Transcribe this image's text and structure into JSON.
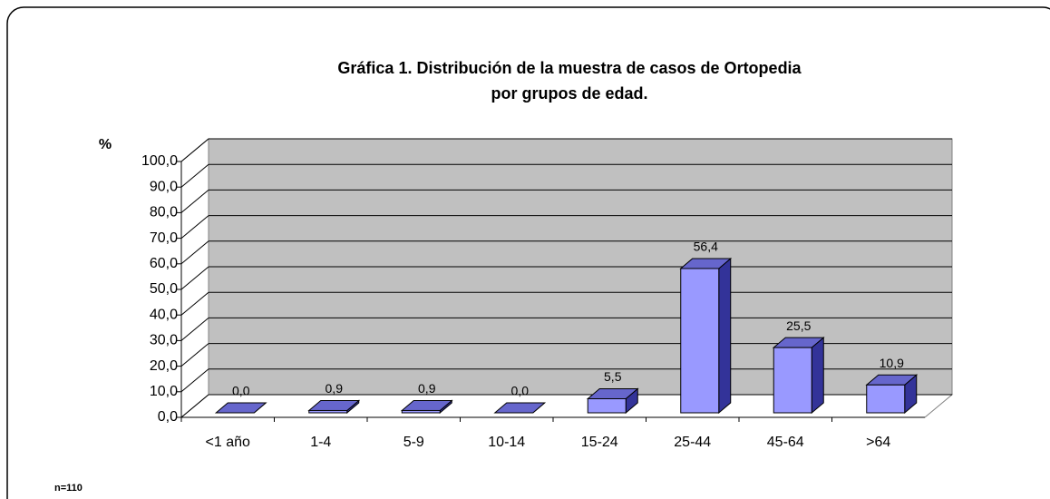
{
  "chart_data": {
    "type": "bar3d",
    "title": [
      "Gráfica 1. Distribución de la muestra de casos de  Ortopedia",
      "por grupos de edad."
    ],
    "y_label": "%",
    "note": "n=110",
    "categories": [
      "<1 año",
      "1-4",
      "5-9",
      "10-14",
      "15-24",
      "25-44",
      "45-64",
      ">64"
    ],
    "values": [
      0.0,
      0.9,
      0.9,
      0.0,
      5.5,
      56.4,
      25.5,
      10.9
    ],
    "value_labels": [
      "0,0",
      "0,9",
      "0,9",
      "0,0",
      "5,5",
      "56,4",
      "25,5",
      "10,9"
    ],
    "color": "#9999ff",
    "wall_color": "#c0c0c0",
    "ylim": [
      0,
      100
    ],
    "yticks": [
      {
        "value": 0,
        "label": "0,0"
      },
      {
        "value": 10,
        "label": "10,0"
      },
      {
        "value": 20,
        "label": "20,0"
      },
      {
        "value": 30,
        "label": "30,0"
      },
      {
        "value": 40,
        "label": "40,0"
      },
      {
        "value": 50,
        "label": "50,0"
      },
      {
        "value": 60,
        "label": "60,0"
      },
      {
        "value": 70,
        "label": "70,0"
      },
      {
        "value": 80,
        "label": "80,0"
      },
      {
        "value": 90,
        "label": "90,0"
      },
      {
        "value": 100,
        "label": "100,0"
      }
    ],
    "grid": true
  }
}
